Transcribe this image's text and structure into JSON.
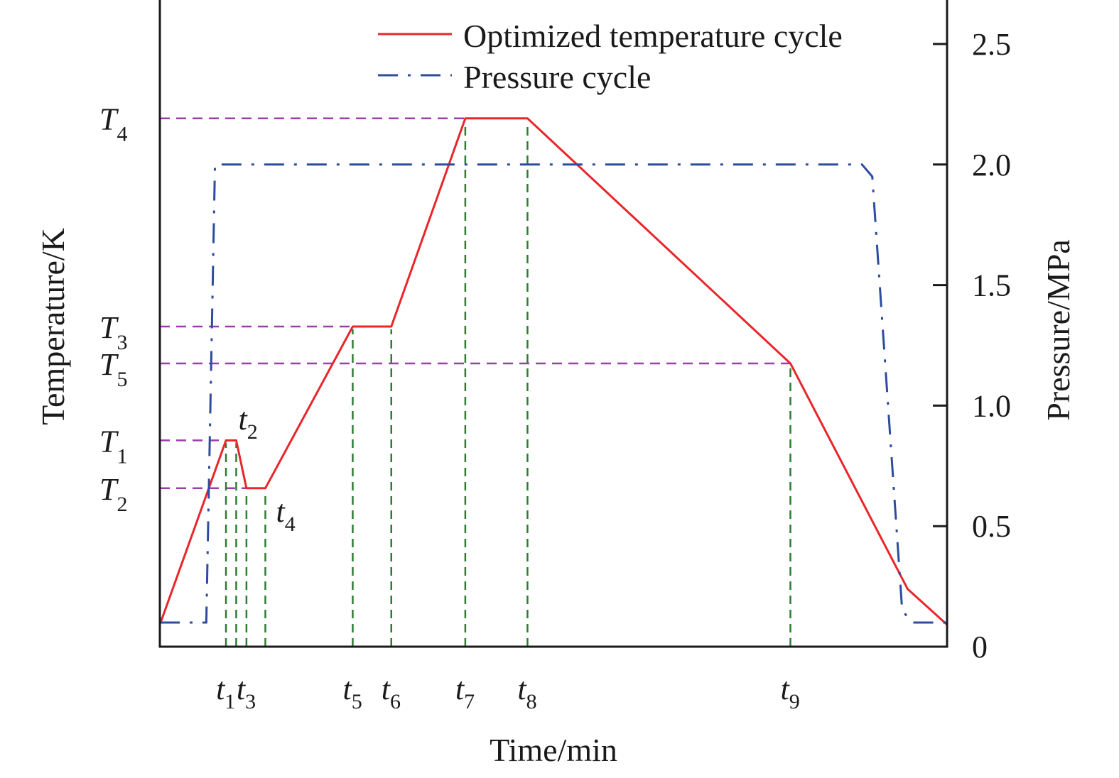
{
  "chart_data": {
    "type": "line",
    "xlabel": "Time/min",
    "ylabel_left": "Temperature/K",
    "ylabel_right": "Pressure/MPa",
    "xlim": [
      0,
      100
    ],
    "ylim_left": [
      0,
      100
    ],
    "ylim_right": [
      0,
      2.68
    ],
    "right_ticks": [
      {
        "value": 0,
        "label": "0"
      },
      {
        "value": 0.5,
        "label": "0.5"
      },
      {
        "value": 1.0,
        "label": "1.0"
      },
      {
        "value": 1.5,
        "label": "1.5"
      },
      {
        "value": 2.0,
        "label": "2.0"
      },
      {
        "value": 2.5,
        "label": "2.5"
      }
    ],
    "temperature_ticks": [
      {
        "name": "T",
        "sub": "4",
        "value": 81.7,
        "at_time": 38.8
      },
      {
        "name": "T",
        "sub": "3",
        "value": 49.5,
        "at_time": 24.5
      },
      {
        "name": "T",
        "sub": "5",
        "value": 43.8,
        "at_time": 80.1
      },
      {
        "name": "T",
        "sub": "1",
        "value": 31.9,
        "at_time": 8.4
      },
      {
        "name": "T",
        "sub": "2",
        "value": 24.5,
        "at_time": 11.0
      }
    ],
    "time_ticks": [
      {
        "name": "t",
        "sub": "1",
        "value": 8.4,
        "temp": 31.9,
        "label_pos": "below"
      },
      {
        "name": "t",
        "sub": "2",
        "value": 9.7,
        "temp": 31.9,
        "label_pos": "above"
      },
      {
        "name": "t",
        "sub": "3",
        "value": 11.0,
        "temp": 24.5,
        "label_pos": "below"
      },
      {
        "name": "t",
        "sub": "4",
        "value": 13.4,
        "temp": 24.5,
        "label_pos": "right"
      },
      {
        "name": "t",
        "sub": "5",
        "value": 24.5,
        "temp": 49.5,
        "label_pos": "below"
      },
      {
        "name": "t",
        "sub": "6",
        "value": 29.4,
        "temp": 49.5,
        "label_pos": "below"
      },
      {
        "name": "t",
        "sub": "7",
        "value": 38.8,
        "temp": 81.7,
        "label_pos": "below"
      },
      {
        "name": "t",
        "sub": "8",
        "value": 46.7,
        "temp": 81.7,
        "label_pos": "below"
      },
      {
        "name": "t",
        "sub": "9",
        "value": 80.1,
        "temp": 43.8,
        "label_pos": "below"
      }
    ],
    "series": [
      {
        "name": "Optimized temperature cycle",
        "axis": "left",
        "color": "#e8262b",
        "style": "solid",
        "x": [
          0,
          8.4,
          9.7,
          11.0,
          13.4,
          24.5,
          29.4,
          38.8,
          46.7,
          80.1,
          95.0,
          100
        ],
        "y": [
          3.4,
          31.9,
          31.9,
          24.5,
          24.5,
          49.5,
          49.5,
          81.7,
          81.7,
          43.8,
          8.9,
          3.4
        ]
      },
      {
        "name": "Pressure cycle",
        "axis": "right",
        "color": "#2e4c9e",
        "style": "dash-dot",
        "x": [
          0,
          5.9,
          7.0,
          89.2,
          90.5,
          94.3,
          95.6,
          100
        ],
        "y": [
          0.1,
          0.1,
          2.0,
          2.0,
          1.95,
          0.15,
          0.1,
          0.1
        ]
      }
    ],
    "guide_colors": {
      "temperature": "#9b3fa8",
      "time": "#2e7d32"
    },
    "legend_placement": "top-right",
    "grid": false
  }
}
